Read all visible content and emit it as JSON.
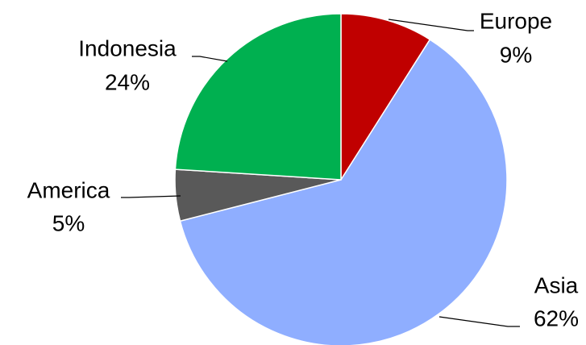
{
  "chart_data": {
    "type": "pie",
    "categories": [
      "Europe",
      "Asia",
      "America",
      "Indonesia"
    ],
    "values": [
      9,
      62,
      5,
      24
    ],
    "value_labels": [
      "9%",
      "62%",
      "5%",
      "24%"
    ],
    "colors": [
      "#c00000",
      "#8faeff",
      "#595959",
      "#00b050"
    ]
  }
}
